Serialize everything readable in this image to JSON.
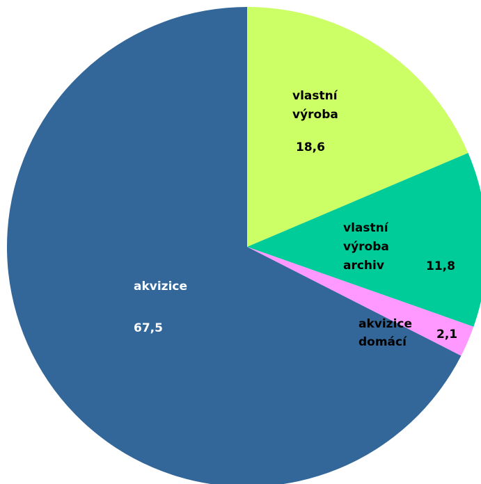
{
  "chart_data": {
    "type": "pie",
    "categories": [
      "vlastní výroba",
      "vlastní výroba archiv",
      "akvizice domácí",
      "akvizice"
    ],
    "values": [
      18.6,
      11.8,
      2.1,
      67.5
    ],
    "value_labels": [
      "18,6",
      "11,8",
      "2,1",
      "67,5"
    ],
    "colors": [
      "#ccff66",
      "#00cc99",
      "#ff99ff",
      "#336699"
    ]
  }
}
